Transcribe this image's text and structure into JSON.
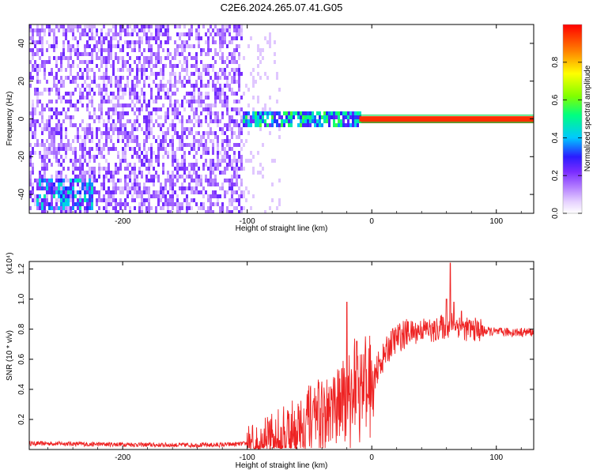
{
  "chart_data": [
    {
      "type": "heatmap",
      "title": "C2E6.2024.265.07.41.G05",
      "xlabel": "Height of straight line (km)",
      "ylabel": "Frequency (Hz)",
      "xlim": [
        -275,
        130
      ],
      "ylim": [
        -50,
        50
      ],
      "x_ticks": [
        -200,
        -100,
        0,
        100
      ],
      "y_ticks": [
        -40,
        -20,
        0,
        20,
        40
      ],
      "colorbar": {
        "label": "Normalized spectral amplitude",
        "range": [
          0,
          1
        ],
        "ticks": [
          "0.0",
          "0.2",
          "0.4",
          "0.6",
          "0.8"
        ],
        "colors": [
          "#ffffff",
          "#d8b8ff",
          "#7a2cff",
          "#2a1cff",
          "#00e0ff",
          "#00ff60",
          "#ffff00",
          "#ff8000",
          "#ff0000"
        ]
      },
      "regions": [
        {
          "description": "scattered low amplitude noise",
          "x": [
            -275,
            -105
          ],
          "freq": [
            -50,
            50
          ],
          "amplitude": 0.15
        },
        {
          "description": "moderate cluster",
          "x": [
            -270,
            -225
          ],
          "freq": [
            -47,
            -30
          ],
          "amplitude": 0.35
        },
        {
          "description": "carrier band",
          "x": [
            -105,
            -10
          ],
          "freq": [
            -3,
            5
          ],
          "amplitude": 0.45
        },
        {
          "description": "strong carrier line",
          "x": [
            -10,
            130
          ],
          "freq": [
            -1,
            1
          ],
          "amplitude": 0.95
        }
      ]
    },
    {
      "type": "line",
      "xlabel": "Height of straight line (km)",
      "ylabel": "SNR (10 * v/v)",
      "y_multiplier": "(x10⁴)",
      "xlim": [
        -275,
        130
      ],
      "ylim": [
        0,
        1.25
      ],
      "x_ticks": [
        -200,
        -100,
        0,
        100
      ],
      "y_ticks": [
        0.2,
        0.4,
        0.6,
        0.8,
        1.0,
        1.2
      ],
      "color": "#ee2222",
      "x": [
        -275,
        -250,
        -225,
        -200,
        -175,
        -150,
        -125,
        -110,
        -100,
        -90,
        -80,
        -70,
        -60,
        -50,
        -40,
        -30,
        -20,
        -15,
        -10,
        -5,
        0,
        5,
        10,
        15,
        20,
        25,
        30,
        35,
        40,
        45,
        50,
        55,
        60,
        65,
        70,
        75,
        80,
        90,
        100,
        110,
        120,
        130
      ],
      "y": [
        0.04,
        0.04,
        0.035,
        0.035,
        0.03,
        0.03,
        0.03,
        0.035,
        0.04,
        0.08,
        0.1,
        0.12,
        0.16,
        0.22,
        0.26,
        0.3,
        0.35,
        0.45,
        0.5,
        0.55,
        0.45,
        0.55,
        0.62,
        0.7,
        0.74,
        0.76,
        0.78,
        0.78,
        0.8,
        0.8,
        0.78,
        0.82,
        0.8,
        0.85,
        0.82,
        0.8,
        0.8,
        0.79,
        0.78,
        0.78,
        0.78,
        0.78
      ],
      "spikes": [
        {
          "x": -20,
          "y": 0.98
        },
        {
          "x": -12,
          "y": 0.72
        },
        {
          "x": 60,
          "y": 1.0
        },
        {
          "x": 63,
          "y": 1.24
        },
        {
          "x": 66,
          "y": 0.98
        },
        {
          "x": 72,
          "y": 0.92
        }
      ]
    }
  ]
}
